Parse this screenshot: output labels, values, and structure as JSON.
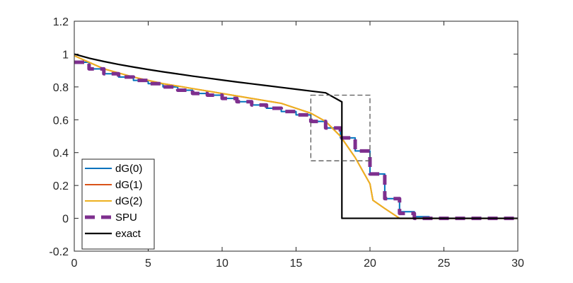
{
  "chart_data": {
    "type": "line",
    "title": "",
    "xlabel": "",
    "ylabel": "",
    "xlim": [
      0,
      30
    ],
    "ylim": [
      -0.2,
      1.2
    ],
    "xticks": [
      0,
      5,
      10,
      15,
      20,
      25,
      30
    ],
    "yticks": [
      -0.2,
      0,
      0.2,
      0.4,
      0.6,
      0.8,
      1,
      1.2
    ],
    "xtick_labels": [
      "0",
      "5",
      "10",
      "15",
      "20",
      "25",
      "30"
    ],
    "ytick_labels": [
      "-0.2",
      "0",
      "0.2",
      "0.4",
      "0.6",
      "0.8",
      "1",
      "1.2"
    ],
    "grid": false,
    "legend_position": "bottom-left",
    "series": [
      {
        "name": "dG(0)",
        "color": "#0072BD",
        "style": "solid",
        "x": [
          0,
          1,
          1,
          2,
          2,
          3,
          3,
          4,
          4,
          5,
          5,
          6,
          6,
          7,
          7,
          8,
          8,
          9,
          9,
          10,
          10,
          11,
          11,
          12,
          12,
          13,
          13,
          14,
          14,
          15,
          15,
          16,
          16,
          17,
          17,
          18,
          18,
          19,
          19,
          20,
          20,
          21,
          21,
          22,
          22,
          23,
          23,
          24,
          24,
          30
        ],
        "y": [
          0.95,
          0.95,
          0.91,
          0.91,
          0.88,
          0.88,
          0.86,
          0.86,
          0.84,
          0.84,
          0.82,
          0.82,
          0.8,
          0.8,
          0.78,
          0.78,
          0.76,
          0.76,
          0.75,
          0.75,
          0.73,
          0.73,
          0.71,
          0.71,
          0.69,
          0.69,
          0.67,
          0.67,
          0.65,
          0.65,
          0.63,
          0.63,
          0.59,
          0.59,
          0.55,
          0.55,
          0.49,
          0.49,
          0.41,
          0.41,
          0.27,
          0.27,
          0.12,
          0.12,
          0.04,
          0.04,
          0.01,
          0.01,
          0.0,
          0.0
        ]
      },
      {
        "name": "dG(1)",
        "color": "#D95319",
        "style": "solid",
        "x": [
          0,
          2,
          4,
          6,
          8,
          10,
          12,
          14,
          15,
          16,
          17,
          18,
          19,
          20,
          20.2,
          21,
          22,
          30
        ],
        "y": [
          0.99,
          0.91,
          0.86,
          0.82,
          0.79,
          0.76,
          0.73,
          0.7,
          0.67,
          0.64,
          0.59,
          0.5,
          0.37,
          0.21,
          0.11,
          0.06,
          0.0,
          0.0
        ]
      },
      {
        "name": "dG(2)",
        "color": "#EDB120",
        "style": "solid",
        "x": [
          0,
          2,
          4,
          6,
          8,
          10,
          12,
          14,
          15,
          16,
          17,
          18,
          19,
          20,
          20.2,
          21,
          22,
          30
        ],
        "y": [
          0.99,
          0.91,
          0.86,
          0.82,
          0.79,
          0.76,
          0.73,
          0.7,
          0.67,
          0.64,
          0.59,
          0.5,
          0.37,
          0.21,
          0.11,
          0.06,
          0.0,
          0.0
        ]
      },
      {
        "name": "SPU",
        "color": "#7E2F8E",
        "style": "dashed",
        "x": [
          0,
          1,
          1,
          2,
          2,
          3,
          3,
          4,
          4,
          5,
          5,
          6,
          6,
          7,
          7,
          8,
          8,
          9,
          9,
          10,
          10,
          11,
          11,
          12,
          12,
          13,
          13,
          14,
          14,
          15,
          15,
          16,
          16,
          17,
          17,
          18,
          18,
          19,
          19,
          20,
          20,
          21,
          21,
          22,
          22,
          23,
          23,
          30
        ],
        "y": [
          0.95,
          0.95,
          0.91,
          0.91,
          0.88,
          0.88,
          0.86,
          0.86,
          0.84,
          0.84,
          0.82,
          0.82,
          0.8,
          0.8,
          0.78,
          0.78,
          0.76,
          0.76,
          0.75,
          0.75,
          0.73,
          0.73,
          0.71,
          0.71,
          0.69,
          0.69,
          0.67,
          0.67,
          0.65,
          0.65,
          0.63,
          0.63,
          0.59,
          0.59,
          0.55,
          0.55,
          0.49,
          0.49,
          0.41,
          0.41,
          0.27,
          0.27,
          0.12,
          0.12,
          0.03,
          0.03,
          0.0,
          0.0
        ]
      },
      {
        "name": "exact",
        "color": "#000000",
        "style": "solid",
        "x": [
          0,
          1,
          2,
          3,
          4,
          5,
          6,
          7,
          8,
          9,
          10,
          11,
          12,
          13,
          14,
          15,
          16,
          17,
          18.1,
          18.1,
          30
        ],
        "y": [
          1.0,
          0.975,
          0.955,
          0.937,
          0.921,
          0.906,
          0.892,
          0.879,
          0.866,
          0.854,
          0.842,
          0.83,
          0.819,
          0.808,
          0.797,
          0.786,
          0.775,
          0.764,
          0.709,
          0.0,
          0.0
        ]
      }
    ],
    "annotations": [
      {
        "type": "dashed-box",
        "x": [
          16,
          20
        ],
        "y": [
          0.35,
          0.75
        ],
        "color": "#595959"
      }
    ]
  }
}
